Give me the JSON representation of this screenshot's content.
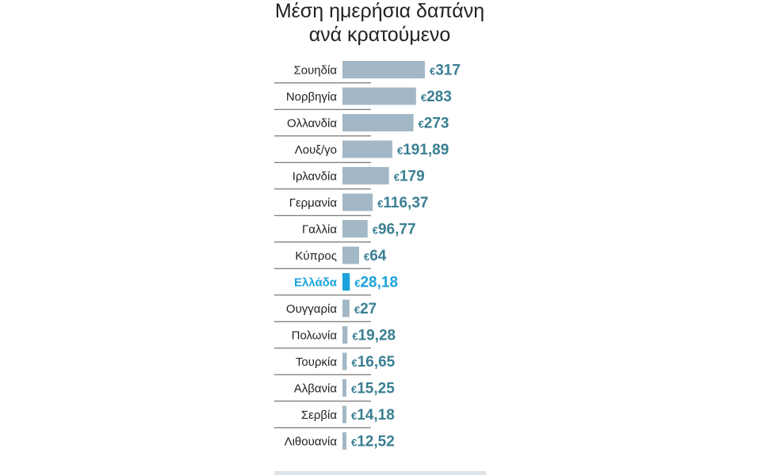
{
  "chart_data": {
    "type": "bar",
    "orientation": "horizontal",
    "title_lines": [
      "Μέση ημερήσια δαπάνη",
      "ανά κρατούμενο"
    ],
    "currency_symbol": "€",
    "categories": [
      "Σουηδία",
      "Νορβηγία",
      "Ολλανδία",
      "Λουξ/γο",
      "Ιρλανδία",
      "Γερμανία",
      "Γαλλία",
      "Κύπρος",
      "Ελλάδα",
      "Ουγγαρία",
      "Πολωνία",
      "Τουρκία",
      "Αλβανία",
      "Σερβία",
      "Λιθουανία"
    ],
    "values": [
      317,
      283,
      273,
      191.89,
      179,
      116.37,
      96.77,
      64,
      28.18,
      27,
      19.28,
      16.65,
      15.25,
      14.18,
      12.52
    ],
    "value_labels": [
      "317",
      "283",
      "273",
      "191,89",
      "179",
      "116,37",
      "96,77",
      "64",
      "28,18",
      "27",
      "19,28",
      "16,65",
      "15,25",
      "14,18",
      "12,52"
    ],
    "highlight_category": "Ελλάδα",
    "xlim": [
      0,
      317
    ],
    "grid": false,
    "legend": "none",
    "colors": {
      "bar": "#a3b8c6",
      "bar_highlight": "#1aa3dc",
      "value_text": "#3a7f92",
      "value_highlight": "#1aa3dc",
      "label_text": "#222222",
      "separator": "#555555",
      "footer_bar": "#dde3e7"
    }
  }
}
